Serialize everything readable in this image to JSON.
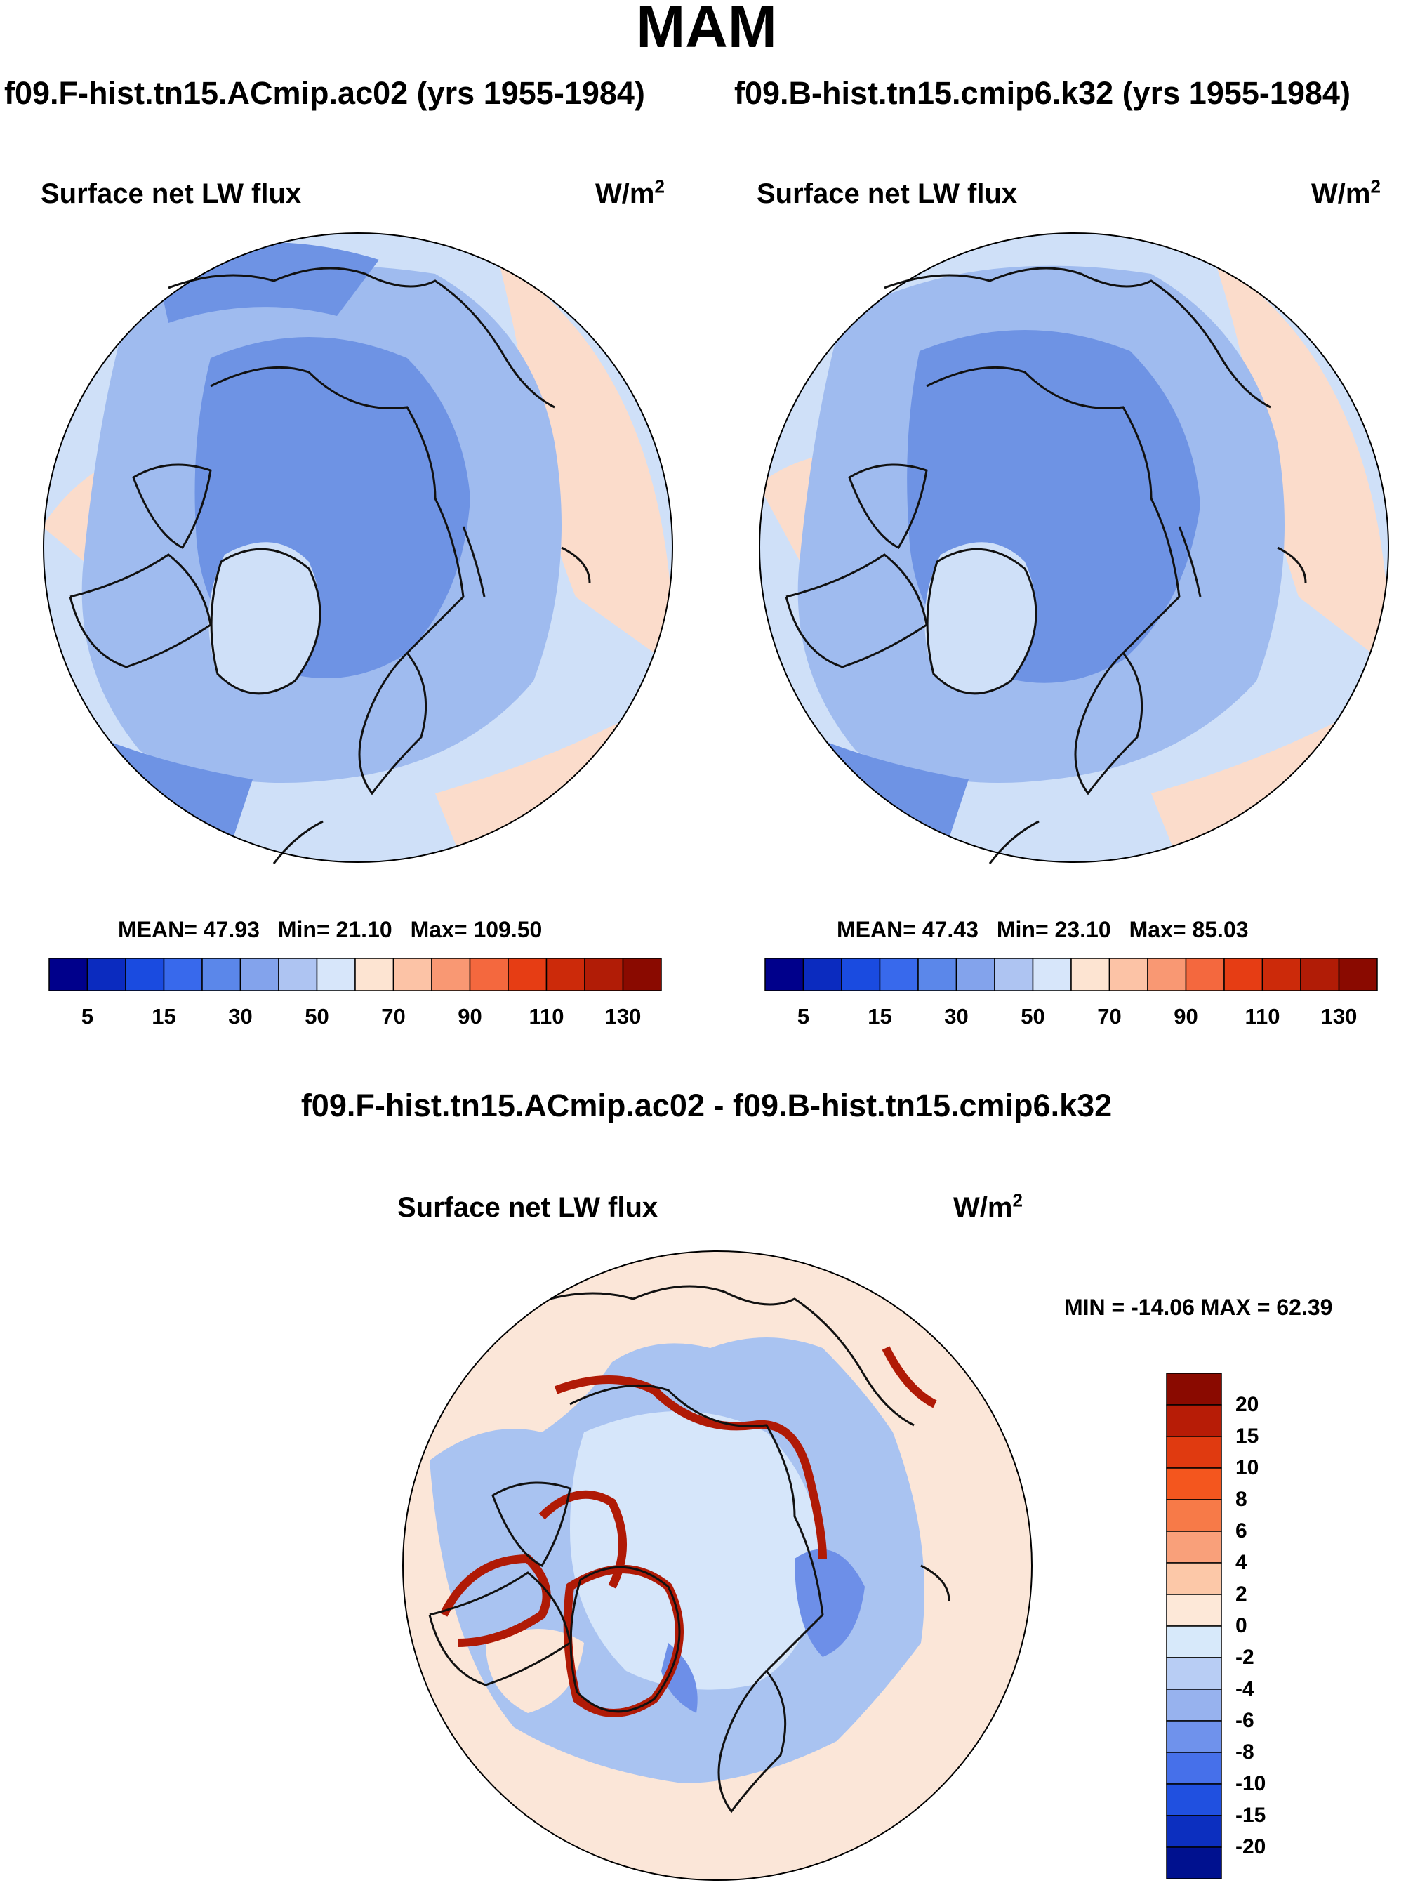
{
  "season": "MAM",
  "panels": [
    {
      "id": "left",
      "run_title": "f09.F-hist.tn15.ACmip.ac02 (yrs 1955-1984)",
      "variable": "Surface net LW flux",
      "units_base": "W/m",
      "units_exp": "2",
      "stats": {
        "mean_label": "MEAN=",
        "mean": "47.93",
        "min_label": "Min=",
        "min": "21.10",
        "max_label": "Max=",
        "max": "109.50"
      }
    },
    {
      "id": "right",
      "run_title": "f09.B-hist.tn15.cmip6.k32 (yrs 1955-1984)",
      "variable": "Surface net LW flux",
      "units_base": "W/m",
      "units_exp": "2",
      "stats": {
        "mean_label": "MEAN=",
        "mean": "47.43",
        "min_label": "Min=",
        "min": "23.10",
        "max_label": "Max=",
        "max": "85.03"
      }
    }
  ],
  "colorbar": {
    "colors": [
      "#00008b",
      "#0b2bbf",
      "#1a4be0",
      "#3869ec",
      "#5b87ea",
      "#83a3ec",
      "#aec4f2",
      "#d7e6fa",
      "#fde4d2",
      "#fcc3a6",
      "#f99873",
      "#f4683e",
      "#e63d14",
      "#cc2a0a",
      "#b11c06",
      "#8a0a00"
    ],
    "labels": [
      "5",
      "15",
      "30",
      "50",
      "70",
      "90",
      "110",
      "130"
    ]
  },
  "diff": {
    "title": "f09.F-hist.tn15.ACmip.ac02 - f09.B-hist.tn15.cmip6.k32",
    "variable": "Surface net LW flux",
    "units_base": "W/m",
    "units_exp": "2",
    "minmax": "MIN = -14.06 MAX =  62.39",
    "colorbar": {
      "colors": [
        "#8a0a00",
        "#b71c06",
        "#e03a10",
        "#f4561e",
        "#f77a48",
        "#f9a07a",
        "#fcc8a8",
        "#fde8d8",
        "#d7e9fa",
        "#b8cdf4",
        "#97b2ee",
        "#6f92ec",
        "#4670ea",
        "#2050e0",
        "#0c2fbf",
        "#00118f"
      ],
      "labels": [
        "20",
        "15",
        "10",
        "8",
        "6",
        "4",
        "2",
        "0",
        "-2",
        "-4",
        "-6",
        "-8",
        "-10",
        "-15",
        "-20"
      ]
    }
  },
  "map_colors": {
    "ocean_abs": "#6e93e4",
    "mid_abs": "#9fbbef",
    "light_abs": "#cfe0f8",
    "warm_abs": "#fbdccb",
    "diff_base": "#fbe6d8",
    "diff_neg": "#a9c3f1",
    "diff_neg2": "#6d8fe8",
    "diff_hot": "#b01a06",
    "coast": "#111111"
  }
}
